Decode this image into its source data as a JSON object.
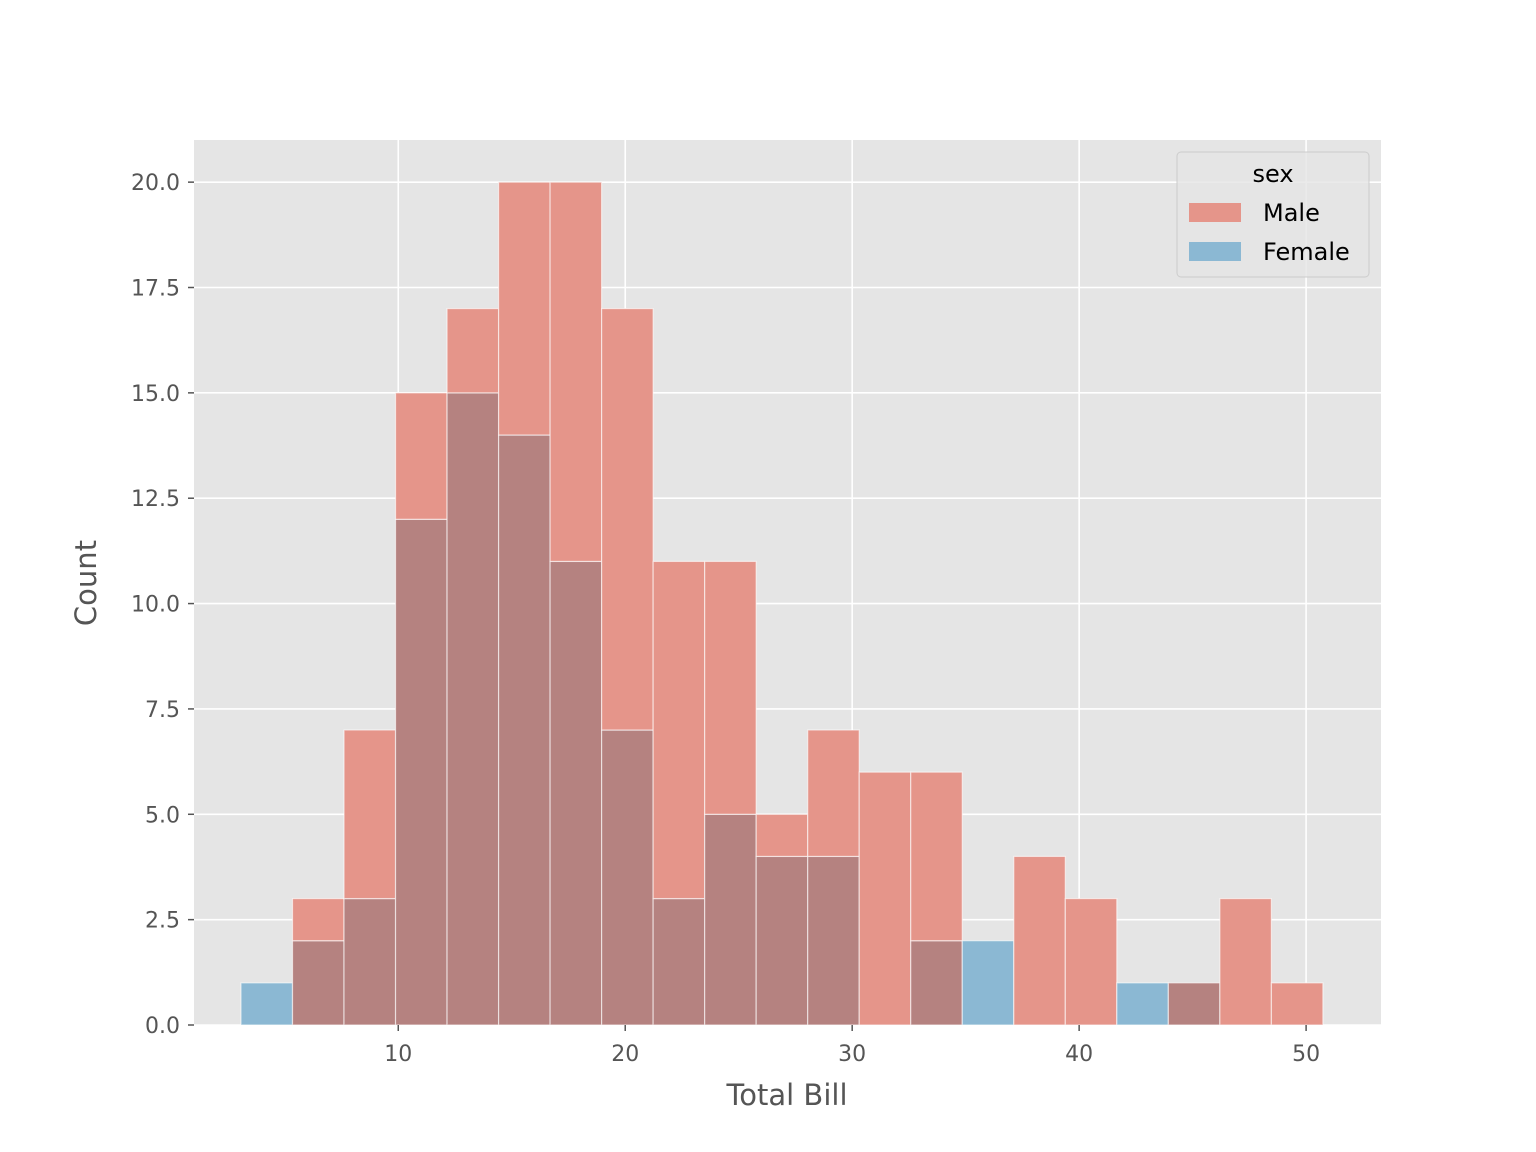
{
  "chart_data": {
    "type": "bar",
    "subtype": "overlapping-histogram",
    "xlabel": "Total Bill",
    "ylabel": "Count",
    "xlim": [
      1.0,
      53.3
    ],
    "ylim": [
      0,
      21
    ],
    "xticks": [
      10,
      20,
      30,
      40,
      50
    ],
    "yticks": [
      0.0,
      2.5,
      5.0,
      7.5,
      10.0,
      12.5,
      15.0,
      17.5,
      20.0
    ],
    "ytick_labels": [
      "0.0",
      "2.5",
      "5.0",
      "7.5",
      "10.0",
      "12.5",
      "15.0",
      "17.5",
      "20.0"
    ],
    "grid": true,
    "bin_edges": [
      3.07,
      5.34,
      7.61,
      9.88,
      12.15,
      14.42,
      16.69,
      18.96,
      21.23,
      23.5,
      25.77,
      28.04,
      30.31,
      32.58,
      34.85,
      37.12,
      39.39,
      41.66,
      43.93,
      46.2,
      48.47,
      50.74
    ],
    "series": [
      {
        "name": "Male",
        "color": "#e5958a",
        "values": [
          0,
          3,
          7,
          15,
          17,
          20,
          20,
          17,
          11,
          11,
          5,
          7,
          6,
          6,
          0,
          4,
          3,
          0,
          1,
          3,
          1
        ]
      },
      {
        "name": "Female",
        "color": "#8bb8d3",
        "values": [
          1,
          2,
          3,
          12,
          15,
          14,
          11,
          7,
          3,
          5,
          4,
          4,
          0,
          2,
          2,
          0,
          0,
          1,
          1,
          0,
          0
        ]
      }
    ],
    "legend": {
      "title": "sex",
      "position": "top-right"
    }
  },
  "colors": {
    "plot_background": "#e5e5e5",
    "grid": "#ffffff",
    "overlap": "#b58280"
  }
}
